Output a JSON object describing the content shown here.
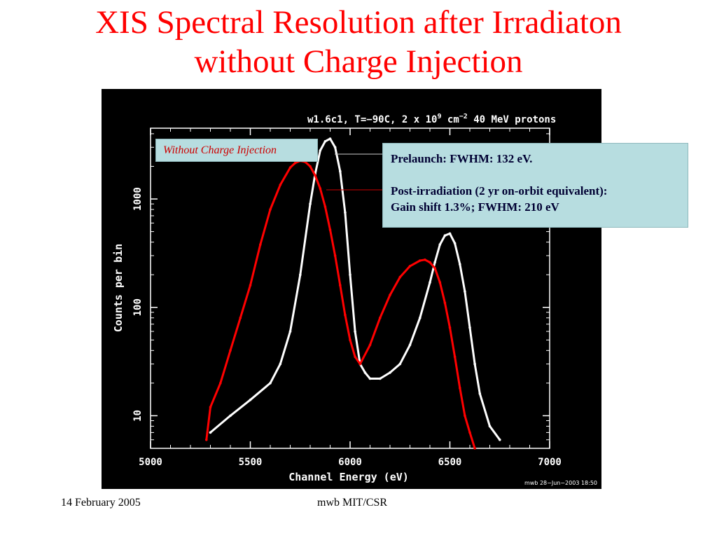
{
  "slide": {
    "title_line1": "XIS Spectral Resolution after  Irradiaton",
    "title_line2": "without Charge Injection",
    "footer_date": "14 February 2005",
    "footer_org": "mwb MIT/CSR"
  },
  "annotations": {
    "label_box": "Without Charge Injection",
    "info_line1": "Prelaunch: FWHM: 132 eV.",
    "info_line2": "Post-irradiation (2 yr on-orbit equivalent):",
    "info_line3": "Gain shift 1.3%; FWHM: 210 eV"
  },
  "colors": {
    "title": "#ff0000",
    "plot_background": "#000000",
    "prelaunch_series": "#ffffff",
    "post_irradiation_series": "#ff0000",
    "annotation_box": "#b7dde0"
  },
  "chart_data": {
    "type": "line",
    "title": "w1.6c1, T=−90C, 2 x 10",
    "title_exponent": "9",
    "title_unit": " cm",
    "title_unit_exponent": "−2",
    "title_tail": " 40 MeV protons",
    "xlabel": "Channel Energy (eV)",
    "ylabel": "Counts per bin",
    "xlim": [
      5000,
      7000
    ],
    "ylim": [
      5,
      4500
    ],
    "yscale": "log",
    "xticks": [
      5000,
      5500,
      6000,
      6500,
      7000
    ],
    "xtick_labels": [
      "5000",
      "5500",
      "6000",
      "6500",
      "7000"
    ],
    "yticks": [
      10,
      100,
      1000
    ],
    "ytick_labels": [
      "10",
      "100",
      "1000"
    ],
    "footer_stamp": "mwb 28−Jun−2003 18:50",
    "series": [
      {
        "key": "prelaunch",
        "color": "#ffffff",
        "x": [
          5300,
          5400,
          5500,
          5600,
          5650,
          5700,
          5750,
          5800,
          5825,
          5850,
          5875,
          5900,
          5925,
          5950,
          5975,
          6000,
          6025,
          6050,
          6075,
          6100,
          6150,
          6200,
          6250,
          6300,
          6350,
          6400,
          6425,
          6450,
          6475,
          6500,
          6525,
          6550,
          6575,
          6600,
          6625,
          6650,
          6700,
          6750
        ],
        "y": [
          7,
          10,
          14,
          20,
          30,
          60,
          200,
          900,
          1700,
          2800,
          3400,
          3600,
          3000,
          1800,
          750,
          200,
          60,
          30,
          25,
          22,
          22,
          25,
          30,
          45,
          80,
          170,
          260,
          380,
          460,
          480,
          390,
          250,
          140,
          65,
          30,
          16,
          8,
          6
        ]
      },
      {
        "key": "post_irradiation",
        "color": "#ff0000",
        "x": [
          5280,
          5300,
          5350,
          5400,
          5450,
          5500,
          5550,
          5600,
          5650,
          5700,
          5725,
          5750,
          5775,
          5800,
          5825,
          5850,
          5875,
          5900,
          5925,
          5950,
          5975,
          6000,
          6025,
          6050,
          6100,
          6150,
          6200,
          6250,
          6300,
          6350,
          6375,
          6400,
          6425,
          6450,
          6475,
          6500,
          6525,
          6550,
          6575,
          6600,
          6625
        ],
        "y": [
          6,
          12,
          20,
          40,
          80,
          160,
          380,
          800,
          1350,
          1950,
          2150,
          2250,
          2200,
          2000,
          1650,
          1250,
          850,
          520,
          300,
          160,
          85,
          50,
          35,
          30,
          45,
          80,
          130,
          190,
          240,
          270,
          275,
          260,
          230,
          170,
          110,
          65,
          35,
          18,
          10,
          7,
          5
        ]
      }
    ]
  }
}
